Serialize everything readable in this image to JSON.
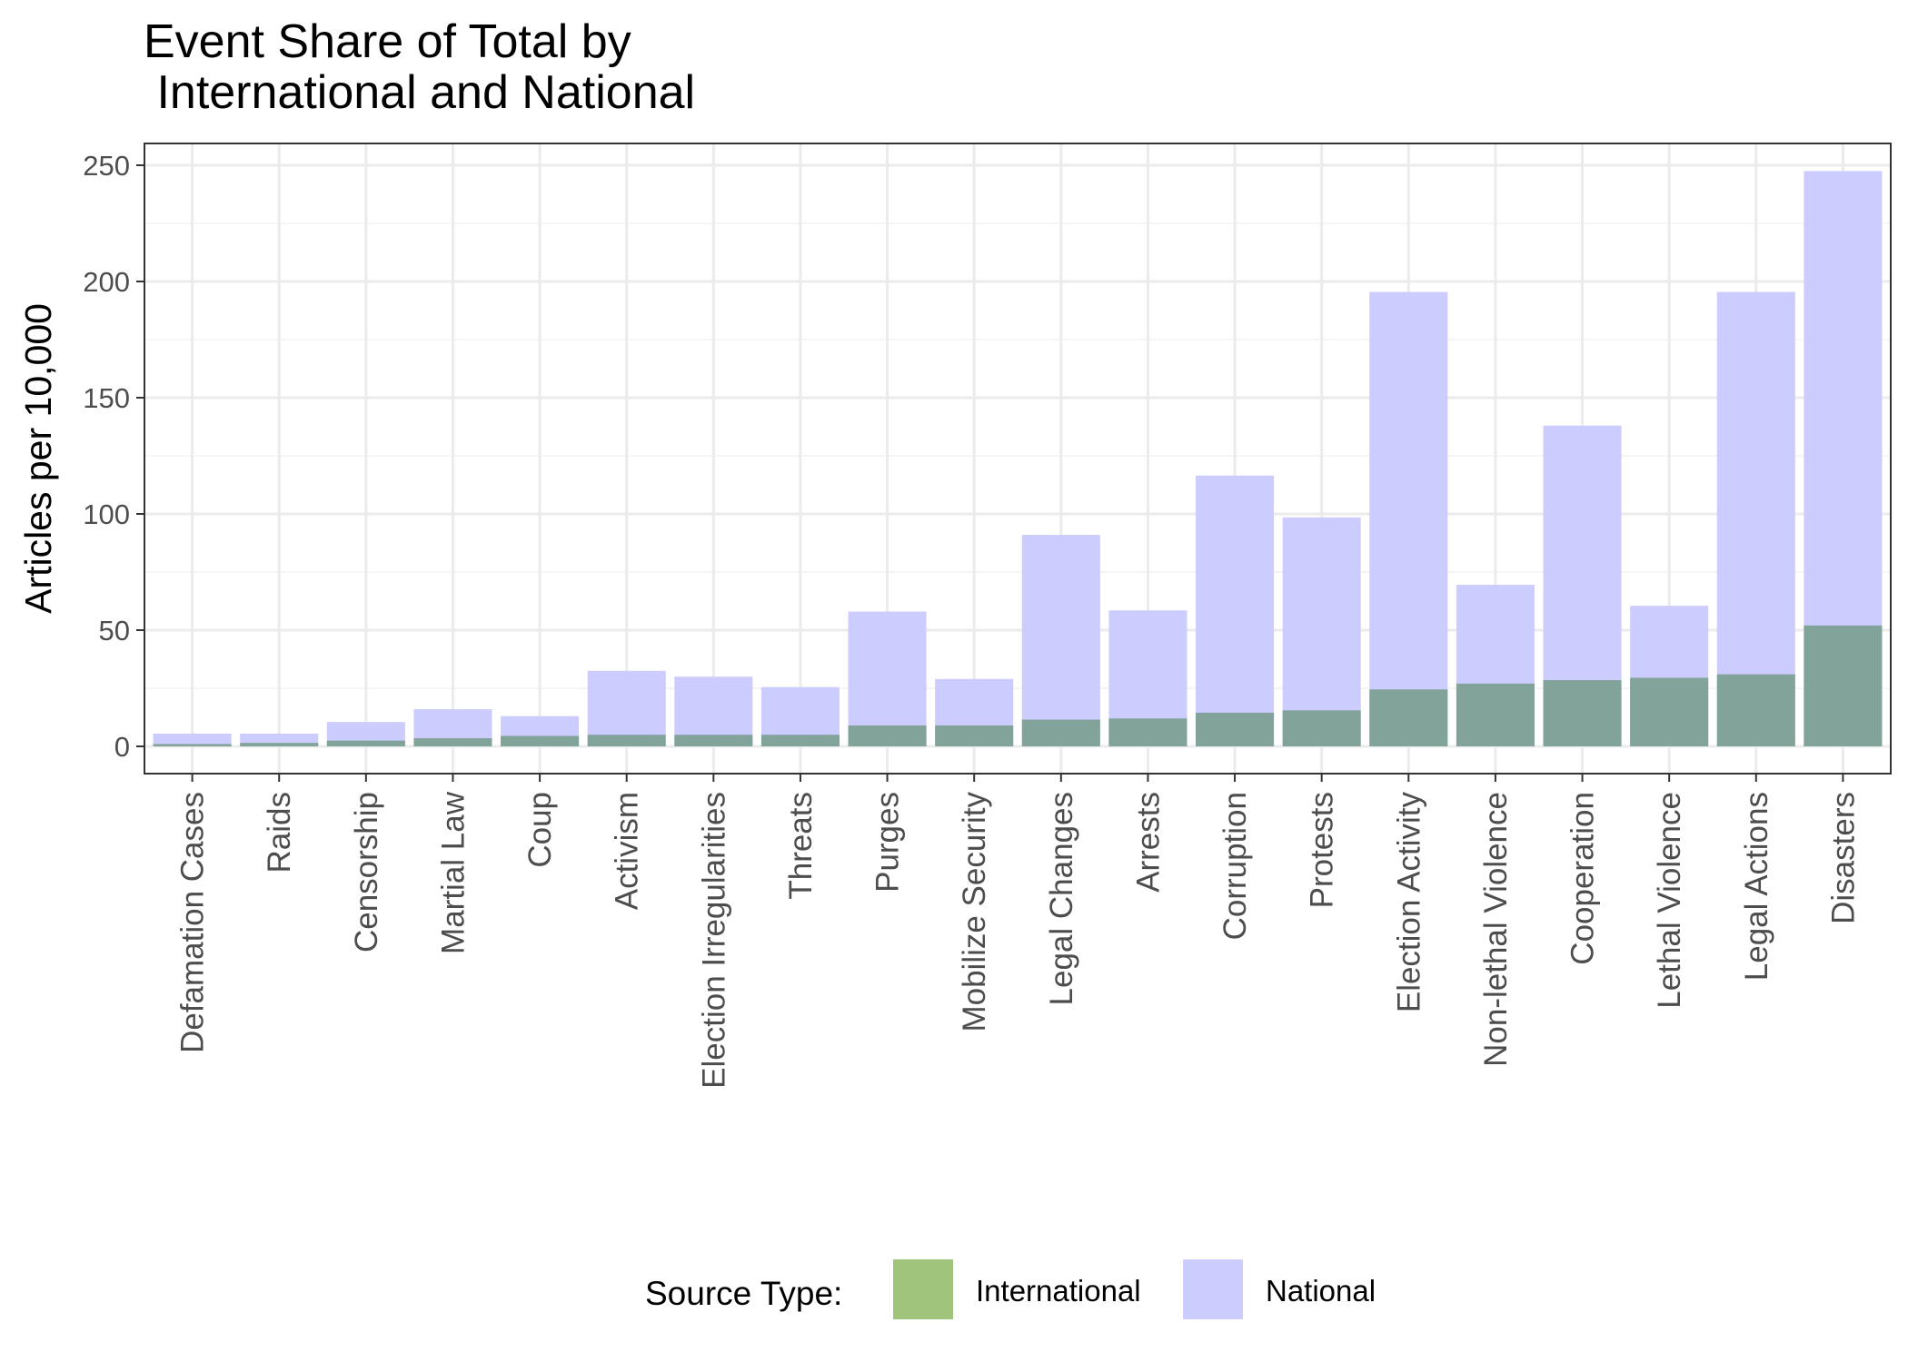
{
  "chart_data": {
    "type": "bar",
    "title": "Event Share of Total by\n International and National",
    "xlabel": "",
    "ylabel": "Articles per 10,000",
    "ylim": [
      0,
      260
    ],
    "yticks": [
      0,
      50,
      100,
      150,
      200,
      250
    ],
    "grid": true,
    "legend_position": "bottom",
    "legend_title": "Source Type:",
    "categories": [
      "Defamation Cases",
      "Raids",
      "Censorship",
      "Martial Law",
      "Coup",
      "Activism",
      "Election Irregularities",
      "Threats",
      "Purges",
      "Mobilize Security",
      "Legal Changes",
      "Arrests",
      "Corruption",
      "Protests",
      "Election Activity",
      "Non-lethal Violence",
      "Cooperation",
      "Lethal Violence",
      "Legal Actions",
      "Disasters"
    ],
    "series": [
      {
        "name": "International",
        "color": "#a1c47c",
        "values": [
          1,
          1.5,
          2.5,
          3.5,
          4.5,
          5,
          5,
          5,
          9,
          9,
          11.5,
          12,
          14.5,
          15.5,
          24.5,
          27,
          28.5,
          29.5,
          31,
          52
        ]
      },
      {
        "name": "National",
        "color": "#ccccff",
        "values": [
          5.5,
          5.5,
          10.5,
          16,
          13,
          32.5,
          30,
          25.5,
          58,
          29,
          91,
          58.5,
          116.5,
          98.5,
          195.5,
          69.5,
          138,
          60.5,
          195.5,
          247.5
        ]
      }
    ],
    "overlap_color": "#82a399"
  }
}
